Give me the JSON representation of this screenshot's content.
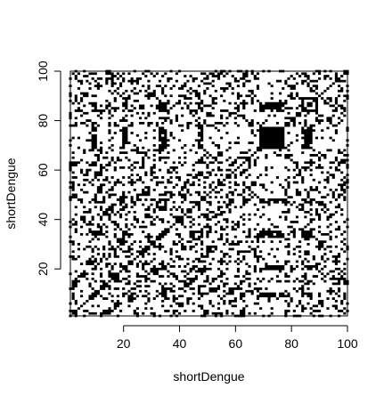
{
  "chart_data": {
    "type": "heatmap",
    "title": "",
    "xlabel": "shortDengue",
    "ylabel": "shortDengue",
    "xlim": [
      1,
      100
    ],
    "ylim": [
      1,
      100
    ],
    "x_ticks": [
      20,
      40,
      60,
      80,
      100
    ],
    "y_ticks": [
      20,
      40,
      60,
      80,
      100
    ],
    "grid": false,
    "legend": "none",
    "n": 100,
    "fill_color": "#000000",
    "background_color": "#ffffff",
    "dense_block_bands": [
      [
        9,
        10
      ],
      [
        20,
        21
      ],
      [
        33,
        35
      ],
      [
        47,
        48
      ],
      [
        69,
        77
      ],
      [
        84,
        87
      ]
    ],
    "wide_block_band": [
      69,
      77
    ]
  }
}
